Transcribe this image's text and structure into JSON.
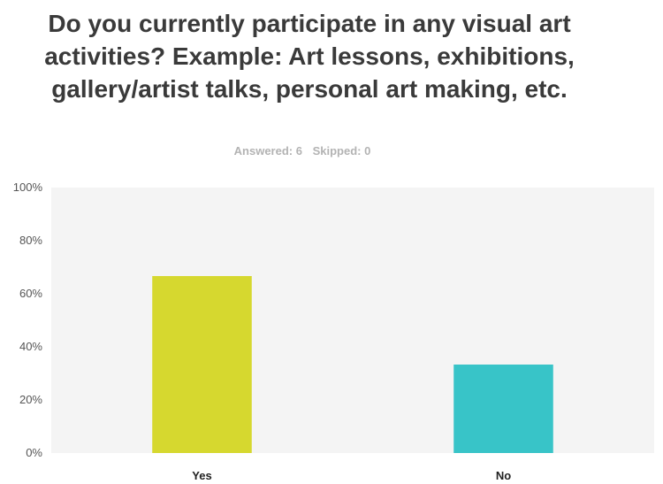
{
  "question": {
    "title": "Do you currently participate in any visual art activities? Example: Art lessons, exhibitions, gallery/artist talks, personal art making, etc."
  },
  "summary": {
    "answered": "Answered: 6",
    "skipped": "Skipped: 0"
  },
  "chart_data": {
    "type": "bar",
    "categories": [
      "Yes",
      "No"
    ],
    "values": [
      66.67,
      33.33
    ],
    "colors": [
      "#d6d82f",
      "#38c4c8"
    ],
    "ylim": [
      0,
      100
    ],
    "yticks": [
      "0%",
      "20%",
      "40%",
      "60%",
      "80%",
      "100%"
    ],
    "grid": false,
    "plot_background": "#f4f4f4"
  }
}
